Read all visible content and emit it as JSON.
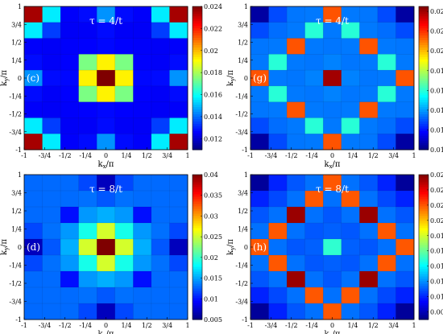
{
  "colors": {
    "colormap": [
      "#00007f",
      "#0000ff",
      "#007fff",
      "#00ffff",
      "#7fff7f",
      "#ffff00",
      "#ff7f00",
      "#ff0000",
      "#7f0000"
    ],
    "panel_label_color": "#ffffff",
    "contour_line_color": "#1a1a1a"
  },
  "chart_data": [
    {
      "type": "heatmap",
      "panel_label": "(c)",
      "annotation": "τ = 4/t",
      "xlabel": "k",
      "xlabel_sub": "x",
      "xlabel_unit": "/π",
      "ylabel": "k",
      "ylabel_sub": "y",
      "ylabel_unit": "/π",
      "x_ticks": [
        "-1",
        "-3/4",
        "-1/2",
        "-1/4",
        "0",
        "1/4",
        "1/2",
        "3/4",
        "1"
      ],
      "y_ticks": [
        "-1",
        "-3/4",
        "-1/2",
        "-1/4",
        "0",
        "1/4",
        "1/2",
        "3/4",
        "1"
      ],
      "xlim": [
        -1,
        1
      ],
      "ylim": [
        -1,
        1
      ],
      "colorbar_range": [
        0.011,
        0.024
      ],
      "colorbar_ticks": [
        "0.012",
        "0.014",
        "0.016",
        "0.018",
        "0.02",
        "0.022",
        "0.024"
      ],
      "pattern": {
        "base": 0.0125,
        "center_peak": 0.0245,
        "center_width": 0.06,
        "corner_peak": 0.0235,
        "corner_width": 0.05,
        "plateau": 0.0165,
        "plateau_half_width": 0.38,
        "edge_mid": 0.0145,
        "edge_width": 0.03
      }
    },
    {
      "type": "heatmap",
      "panel_label": "(g)",
      "annotation": "τ = 4/t",
      "xlabel": "k",
      "xlabel_sub": "x",
      "xlabel_unit": "/π",
      "ylabel": "k",
      "ylabel_sub": "y",
      "ylabel_unit": "/π",
      "x_ticks": [
        "-1",
        "-3/4",
        "-1/2",
        "-1/4",
        "0",
        "1/4",
        "1/2",
        "3/4",
        "1"
      ],
      "y_ticks": [
        "-1",
        "-3/4",
        "-1/2",
        "-1/4",
        "0",
        "1/4",
        "1/2",
        "3/4",
        "1"
      ],
      "xlim": [
        -1,
        1
      ],
      "ylim": [
        -1,
        1
      ],
      "colorbar_range": [
        0.01,
        0.0245
      ],
      "colorbar_ticks": [
        "0.01",
        "0.012",
        "0.014",
        "0.016",
        "0.018",
        "0.02",
        "0.022",
        "0.024"
      ],
      "pattern": {
        "base": 0.0135,
        "center_peak": 0.024,
        "center_width": 0.015,
        "ring_value": 0.016,
        "ring_radius": 0.5,
        "ring_width": 0.012,
        "spot_value": 0.019,
        "spot_positions": [
          [
            0.5,
            0.5
          ],
          [
            -0.5,
            0.5
          ],
          [
            0.5,
            -0.5
          ],
          [
            -0.5,
            -0.5
          ],
          [
            0,
            1
          ],
          [
            0,
            -1
          ],
          [
            1,
            0
          ],
          [
            -1,
            0
          ]
        ],
        "corner_low": 0.0105
      }
    },
    {
      "type": "heatmap",
      "panel_label": "(d)",
      "annotation": "τ = 8/t",
      "xlabel": "k",
      "xlabel_sub": "x",
      "xlabel_unit": "/π",
      "ylabel": "k",
      "ylabel_sub": "y",
      "ylabel_unit": "/π",
      "x_ticks": [
        "-1",
        "-3/4",
        "-1/2",
        "-1/4",
        "0",
        "1/4",
        "1/2",
        "3/4",
        "1"
      ],
      "y_ticks": [
        "-1",
        "-3/4",
        "-1/2",
        "-1/4",
        "0",
        "1/4",
        "1/2",
        "3/4",
        "1"
      ],
      "xlim": [
        -1,
        1
      ],
      "ylim": [
        -1,
        1
      ],
      "colorbar_range": [
        0.005,
        0.04
      ],
      "colorbar_ticks": [
        "0.005",
        "0.01",
        "0.015",
        "0.02",
        "0.025",
        "0.03",
        "0.035",
        "0.04"
      ],
      "pattern": {
        "base": 0.008,
        "center_peak": 0.04,
        "center_width": 0.05,
        "background": 0.013,
        "edge_low": 0.007
      }
    },
    {
      "type": "heatmap",
      "panel_label": "(h)",
      "annotation": "τ = 8/t",
      "xlabel": "k",
      "xlabel_sub": "x",
      "xlabel_unit": "/π",
      "ylabel": "k",
      "ylabel_sub": "y",
      "ylabel_unit": "/π",
      "x_ticks": [
        "-1",
        "-3/4",
        "-1/2",
        "-1/4",
        "0",
        "1/4",
        "1/2",
        "3/4",
        "1"
      ],
      "y_ticks": [
        "-1",
        "-3/4",
        "-1/2",
        "-1/4",
        "0",
        "1/4",
        "1/2",
        "3/4",
        "1"
      ],
      "xlim": [
        -1,
        1
      ],
      "ylim": [
        -1,
        1
      ],
      "colorbar_range": [
        0.007,
        0.026
      ],
      "colorbar_ticks": [
        "0.008",
        "0.01",
        "0.012",
        "0.014",
        "0.016",
        "0.018",
        "0.02",
        "0.022",
        "0.024",
        "0.026"
      ],
      "pattern": {
        "base": 0.011,
        "ridge_value": 0.022,
        "ridge_radius": 0.5,
        "ridge_width": 0.02,
        "hot_value": 0.0255,
        "hot_positions": [
          [
            0.5,
            0.5
          ],
          [
            -0.5,
            0.5
          ],
          [
            0.5,
            -0.5
          ],
          [
            -0.5,
            -0.5
          ]
        ],
        "center_value": 0.015,
        "corner_low": 0.0075
      }
    }
  ]
}
